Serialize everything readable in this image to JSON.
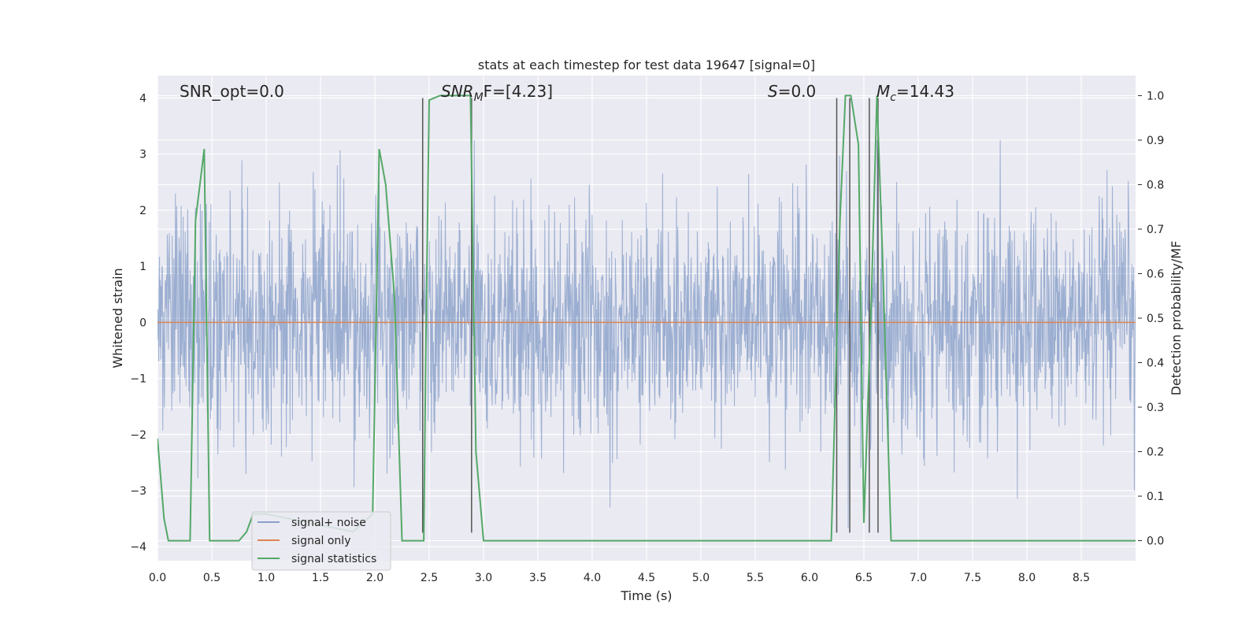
{
  "chart_data": {
    "type": "line",
    "title": "stats at each timestep for test data 19647 [signal=0]",
    "xlabel": "Time (s)",
    "ylabel_left": "Whitened strain",
    "ylabel_right": "Detection probability/MF",
    "xlim": [
      0.0,
      9.0
    ],
    "ylim_left": [
      -4.25,
      4.4
    ],
    "ylim_right": [
      -0.045,
      1.045
    ],
    "xticks": [
      "0.0",
      "0.5",
      "1.0",
      "1.5",
      "2.0",
      "2.5",
      "3.0",
      "3.5",
      "4.0",
      "4.5",
      "5.0",
      "5.5",
      "6.0",
      "6.5",
      "7.0",
      "7.5",
      "8.0",
      "8.5"
    ],
    "yticks_left": [
      "4",
      "3",
      "2",
      "1",
      "0",
      "−1",
      "−2",
      "−3",
      "−4"
    ],
    "yticks_right": [
      "1.0",
      "0.9",
      "0.8",
      "0.7",
      "0.6",
      "0.5",
      "0.4",
      "0.3",
      "0.2",
      "0.1",
      "0.0"
    ],
    "grid": true,
    "annotations": {
      "snr_opt": "SNR_opt=0.0",
      "snr_mf_sym": "SNR",
      "snr_mf_sub": "M",
      "snr_mf_rest": "F=[4.23]",
      "s_sym": "S",
      "s_rest": "=0.0",
      "mc_sym": "M",
      "mc_sub": "c",
      "mc_rest": "=14.43"
    },
    "legend": {
      "placement": "lower-left",
      "entries": [
        "signal+ noise",
        "signal only",
        "signal statistics"
      ]
    },
    "series": [
      {
        "name": "signal+ noise",
        "axis": "left",
        "kind": "noise",
        "envelope_sigma": 1.0,
        "peak_max": 3.25,
        "peak_min": -3.75
      },
      {
        "name": "signal only",
        "axis": "left",
        "x": [
          0.0,
          9.0
        ],
        "y": [
          0.0,
          0.0
        ]
      },
      {
        "name": "signal statistics",
        "axis": "right",
        "x": [
          0.0,
          0.06,
          0.1,
          0.2,
          0.3,
          0.35,
          0.43,
          0.48,
          0.55,
          0.6,
          0.7,
          0.75,
          0.82,
          0.88,
          1.0,
          1.8,
          1.98,
          2.04,
          2.1,
          2.18,
          2.25,
          2.35,
          2.45,
          2.47,
          2.5,
          2.6,
          2.75,
          2.88,
          2.93,
          3.0,
          6.0,
          6.2,
          6.28,
          6.33,
          6.38,
          6.45,
          6.5,
          6.57,
          6.62,
          6.67,
          6.75,
          9.0
        ],
        "y": [
          0.23,
          0.05,
          0.0,
          0.0,
          0.0,
          0.72,
          0.88,
          0.0,
          0.0,
          0.0,
          0.0,
          0.0,
          0.02,
          0.06,
          0.06,
          0.02,
          0.06,
          0.88,
          0.8,
          0.55,
          0.0,
          0.0,
          0.0,
          0.45,
          0.99,
          1.0,
          1.0,
          1.0,
          0.2,
          0.0,
          0.0,
          0.0,
          0.72,
          1.0,
          1.0,
          0.89,
          0.04,
          0.55,
          1.0,
          0.65,
          0.0,
          0.0
        ]
      },
      {
        "name": "vertical markers",
        "axis": "left",
        "kind": "vlines",
        "x": [
          2.44,
          2.89,
          6.25,
          6.37,
          6.55,
          6.63
        ]
      }
    ]
  }
}
